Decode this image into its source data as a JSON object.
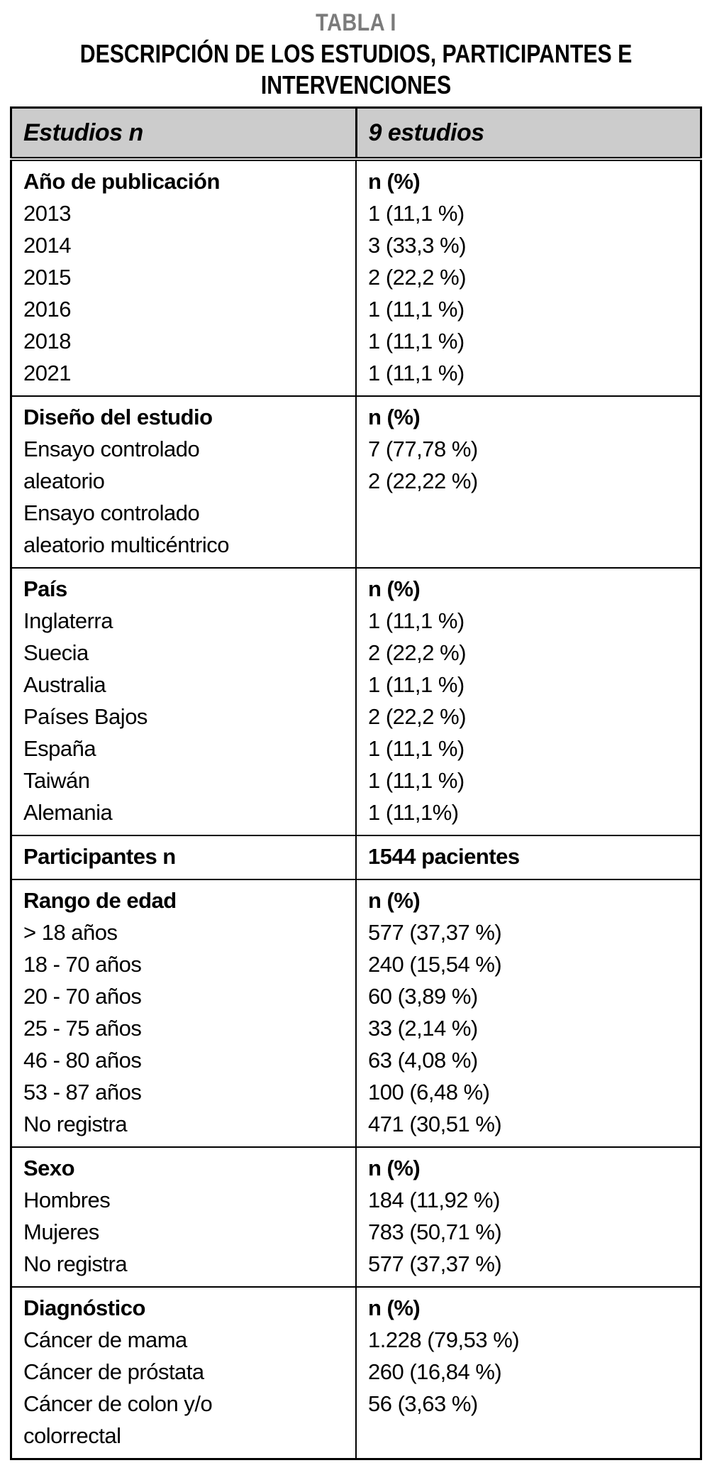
{
  "page": {
    "title": "TABLA I",
    "subtitle": "DESCRIPCIÓN DE LOS ESTUDIOS, PARTICIPANTES E\nINTERVENCIONES"
  },
  "colors": {
    "title_gray": "#7b7b7b",
    "header_background": "#cccccc",
    "border": "#000000"
  },
  "table": {
    "header": {
      "col1": "Estudios n",
      "col2": "9 estudios"
    },
    "sections": [
      {
        "label": "Año de publicación",
        "value_header": "n (%)",
        "items": [
          {
            "label": "2013",
            "value": "1 (11,1 %)"
          },
          {
            "label": "2014",
            "value": "3 (33,3 %)"
          },
          {
            "label": "2015",
            "value": "2 (22,2 %)"
          },
          {
            "label": "2016",
            "value": "1 (11,1 %)"
          },
          {
            "label": "2018",
            "value": "1 (11,1 %)"
          },
          {
            "label": "2021",
            "value": "1 (11,1 %)"
          }
        ]
      },
      {
        "label": "Diseño del estudio",
        "value_header": "n (%)",
        "items": [
          {
            "label": "Ensayo controlado\naleatorio",
            "value": "7 (77,78 %)"
          },
          {
            "label": "Ensayo controlado\naleatorio multicéntrico",
            "value": "2 (22,22 %)"
          }
        ]
      },
      {
        "label": "País",
        "value_header": "n (%)",
        "items": [
          {
            "label": "Inglaterra",
            "value": "1 (11,1 %)"
          },
          {
            "label": "Suecia",
            "value": "2 (22,2 %)"
          },
          {
            "label": "Australia",
            "value": "1 (11,1 %)"
          },
          {
            "label": "Países Bajos",
            "value": "2 (22,2 %)"
          },
          {
            "label": "España",
            "value": "1 (11,1 %)"
          },
          {
            "label": "Taiwán",
            "value": "1 (11,1 %)"
          },
          {
            "label": "Alemania",
            "value": "1 (11,1%)"
          }
        ]
      },
      {
        "label": "Participantes n",
        "value_header": "1544 pacientes",
        "items": []
      },
      {
        "label": "Rango de edad",
        "value_header": "n (%)",
        "items": [
          {
            "label": "> 18 años",
            "value": "577 (37,37 %)"
          },
          {
            "label": "18 - 70 años",
            "value": "240 (15,54 %)"
          },
          {
            "label": "20 - 70 años",
            "value": "60 (3,89 %)"
          },
          {
            "label": "25 - 75 años",
            "value": "33 (2,14 %)"
          },
          {
            "label": "46 - 80 años",
            "value": "63 (4,08 %)"
          },
          {
            "label": "53 - 87 años",
            "value": "100 (6,48 %)"
          },
          {
            "label": "No registra",
            "value": "471 (30,51 %)"
          }
        ]
      },
      {
        "label": "Sexo",
        "value_header": "n (%)",
        "items": [
          {
            "label": "Hombres",
            "value": "184 (11,92 %)"
          },
          {
            "label": "Mujeres",
            "value": "783 (50,71 %)"
          },
          {
            "label": "No registra",
            "value": "577 (37,37 %)"
          }
        ]
      },
      {
        "label": "Diagnóstico",
        "value_header": "n (%)",
        "items": [
          {
            "label": "Cáncer de mama",
            "value": "1.228 (79,53 %)"
          },
          {
            "label": "Cáncer de próstata",
            "value": "260 (16,84 %)"
          },
          {
            "label": "Cáncer de colon y/o\ncolorrectal",
            "value": "56 (3,63 %)"
          }
        ]
      }
    ]
  }
}
